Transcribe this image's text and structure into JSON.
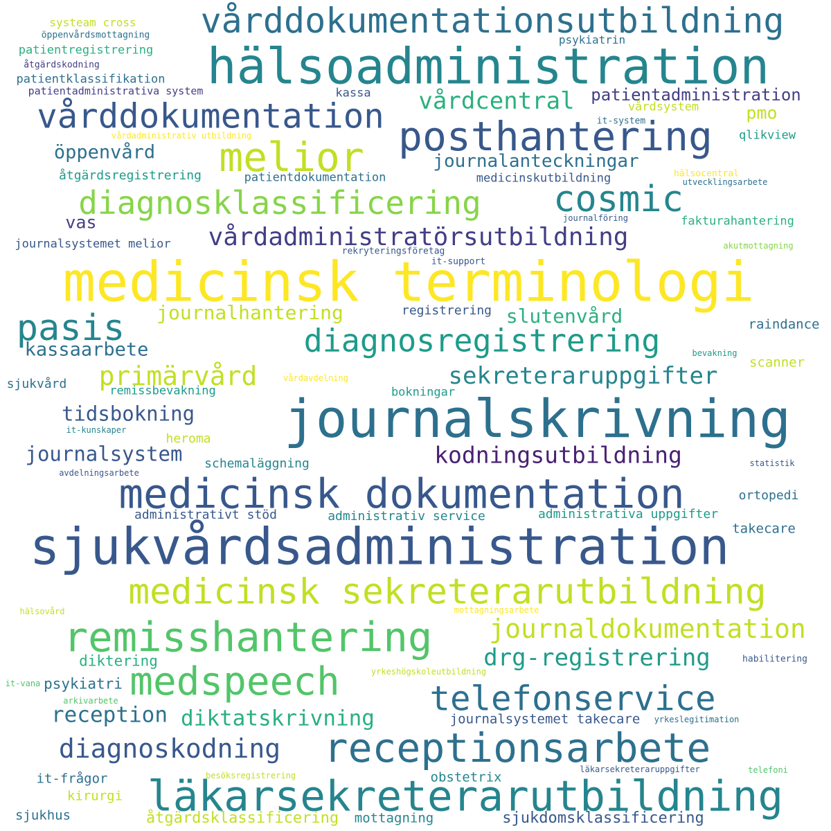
{
  "palette": {
    "c1": "#fde725",
    "c2": "#c2df23",
    "c3": "#86d549",
    "c4": "#52c569",
    "c5": "#2ab07f",
    "c6": "#1e9b8a",
    "c7": "#25858e",
    "c8": "#2d708e",
    "c9": "#38588c",
    "c10": "#433e85",
    "c11": "#482173"
  },
  "words": [
    {
      "text": "medicinsk terminologi",
      "weight": 1.0,
      "color": "c1"
    },
    {
      "text": "journalskrivning",
      "weight": 0.97,
      "color": "c8"
    },
    {
      "text": "sjukvårdsadministration",
      "weight": 0.93,
      "color": "c9"
    },
    {
      "text": "hälsoadministration",
      "weight": 0.9,
      "color": "c7"
    },
    {
      "text": "läkarsekreterarutbildning",
      "weight": 0.78,
      "color": "c7"
    },
    {
      "text": "medicinsk dokumentation",
      "weight": 0.76,
      "color": "c9"
    },
    {
      "text": "medicinsk sekreterarutbildning",
      "weight": 0.74,
      "color": "c2"
    },
    {
      "text": "remisshantering",
      "weight": 0.74,
      "color": "c4"
    },
    {
      "text": "receptionsarbete",
      "weight": 0.73,
      "color": "c8"
    },
    {
      "text": "vårddokumentationsutbildning",
      "weight": 0.72,
      "color": "c8"
    },
    {
      "text": "medspeech",
      "weight": 0.71,
      "color": "c4"
    },
    {
      "text": "melior",
      "weight": 0.7,
      "color": "c2"
    },
    {
      "text": "posthantering",
      "weight": 0.69,
      "color": "c9"
    },
    {
      "text": "pasis",
      "weight": 0.64,
      "color": "c7"
    },
    {
      "text": "vårddokumentation",
      "weight": 0.62,
      "color": "c9"
    },
    {
      "text": "telefonservice",
      "weight": 0.6,
      "color": "c8"
    },
    {
      "text": "cosmic",
      "weight": 0.6,
      "color": "c7"
    },
    {
      "text": "diagnosklassificering",
      "weight": 0.58,
      "color": "c3"
    },
    {
      "text": "diagnosregistrering",
      "weight": 0.56,
      "color": "c6"
    },
    {
      "text": "diagnoskodning",
      "weight": 0.48,
      "color": "c9"
    },
    {
      "text": "journaldokumentation",
      "weight": 0.47,
      "color": "c2"
    },
    {
      "text": "primärvård",
      "weight": 0.46,
      "color": "c2"
    },
    {
      "text": "vårdadministratörsutbildning",
      "weight": 0.43,
      "color": "c10"
    },
    {
      "text": "sekreteraruppgifter",
      "weight": 0.42,
      "color": "c7"
    },
    {
      "text": "drg-registrering",
      "weight": 0.41,
      "color": "c6"
    },
    {
      "text": "vårdcentral",
      "weight": 0.4,
      "color": "c5"
    },
    {
      "text": "kodningsutbildning",
      "weight": 0.4,
      "color": "c11"
    },
    {
      "text": "reception",
      "weight": 0.37,
      "color": "c8"
    },
    {
      "text": "diktatskrivning",
      "weight": 0.36,
      "color": "c5"
    },
    {
      "text": "journalsystem",
      "weight": 0.35,
      "color": "c9"
    },
    {
      "text": "tidsbokning",
      "weight": 0.34,
      "color": "c9"
    },
    {
      "text": "journalhantering",
      "weight": 0.33,
      "color": "c2"
    },
    {
      "text": "slutenvård",
      "weight": 0.32,
      "color": "c5"
    },
    {
      "text": "kassaarbete",
      "weight": 0.32,
      "color": "c8"
    },
    {
      "text": "öppenvård",
      "weight": 0.32,
      "color": "c8"
    },
    {
      "text": "journalanteckningar",
      "weight": 0.31,
      "color": "c8"
    },
    {
      "text": "patientadministration",
      "weight": 0.3,
      "color": "c10"
    },
    {
      "text": "pmo",
      "weight": 0.3,
      "color": "c2"
    },
    {
      "text": "vas",
      "weight": 0.29,
      "color": "c10"
    },
    {
      "text": "åtgärdsklassificering",
      "weight": 0.28,
      "color": "c2"
    },
    {
      "text": "sjukdomsklassificering",
      "weight": 0.28,
      "color": "c9"
    },
    {
      "text": "diktering",
      "weight": 0.27,
      "color": "c5"
    },
    {
      "text": "psykiatri",
      "weight": 0.26,
      "color": "c8"
    },
    {
      "text": "journalsystemet takecare",
      "weight": 0.26,
      "color": "c9"
    },
    {
      "text": "mottagning",
      "weight": 0.25,
      "color": "c7"
    },
    {
      "text": "obstetrix",
      "weight": 0.25,
      "color": "c7"
    },
    {
      "text": "it-frågor",
      "weight": 0.25,
      "color": "c8"
    },
    {
      "text": "kirurgi",
      "weight": 0.24,
      "color": "c2"
    },
    {
      "text": "sjukhus",
      "weight": 0.24,
      "color": "c8"
    },
    {
      "text": "takecare",
      "weight": 0.24,
      "color": "c8"
    },
    {
      "text": "administrativt stöd",
      "weight": 0.24,
      "color": "c9"
    },
    {
      "text": "administrativ service",
      "weight": 0.24,
      "color": "c7"
    },
    {
      "text": "administrativa uppgifter",
      "weight": 0.24,
      "color": "c6"
    },
    {
      "text": "schemaläggning",
      "weight": 0.23,
      "color": "c7"
    },
    {
      "text": "ortopedi",
      "weight": 0.23,
      "color": "c8"
    },
    {
      "text": "heroma",
      "weight": 0.23,
      "color": "c2"
    },
    {
      "text": "scanner",
      "weight": 0.24,
      "color": "c2"
    },
    {
      "text": "raindance",
      "weight": 0.24,
      "color": "c8"
    },
    {
      "text": "registrering",
      "weight": 0.23,
      "color": "c9"
    },
    {
      "text": "sjukvård",
      "weight": 0.23,
      "color": "c8"
    },
    {
      "text": "bokningar",
      "weight": 0.22,
      "color": "c6"
    },
    {
      "text": "remissbevakning",
      "weight": 0.22,
      "color": "c6"
    },
    {
      "text": "åtgärdsregistrering",
      "weight": 0.23,
      "color": "c6"
    },
    {
      "text": "patientdokumentation",
      "weight": 0.22,
      "color": "c8"
    },
    {
      "text": "medicinskutbildning",
      "weight": 0.22,
      "color": "c9"
    },
    {
      "text": "fakturahantering",
      "weight": 0.22,
      "color": "c5"
    },
    {
      "text": "journalsystemet melior",
      "weight": 0.22,
      "color": "c9"
    },
    {
      "text": "qlikview",
      "weight": 0.22,
      "color": "c6"
    },
    {
      "text": "vårdsystem",
      "weight": 0.22,
      "color": "c2"
    },
    {
      "text": "kassa",
      "weight": 0.22,
      "color": "c9"
    },
    {
      "text": "patientregistrering",
      "weight": 0.22,
      "color": "c5"
    },
    {
      "text": "patientklassifikation",
      "weight": 0.22,
      "color": "c8"
    },
    {
      "text": "patientadministrativa system",
      "weight": 0.2,
      "color": "c10"
    },
    {
      "text": "systeam cross",
      "weight": 0.21,
      "color": "c2"
    },
    {
      "text": "psykiatrin",
      "weight": 0.2,
      "color": "c8"
    },
    {
      "text": "öppenvårdsmottagning",
      "weight": 0.18,
      "color": "c8"
    },
    {
      "text": "åtgärdskodning",
      "weight": 0.17,
      "color": "c10"
    },
    {
      "text": "vårdadministrativ utbildning",
      "weight": 0.16,
      "color": "c1"
    },
    {
      "text": "it-system",
      "weight": 0.17,
      "color": "c8"
    },
    {
      "text": "hälsocentral",
      "weight": 0.17,
      "color": "c1"
    },
    {
      "text": "utvecklingsarbete",
      "weight": 0.17,
      "color": "c8"
    },
    {
      "text": "journalföring",
      "weight": 0.16,
      "color": "c9"
    },
    {
      "text": "rekryteringsföretag",
      "weight": 0.17,
      "color": "c9"
    },
    {
      "text": "it-support",
      "weight": 0.17,
      "color": "c9"
    },
    {
      "text": "akutmottagning",
      "weight": 0.16,
      "color": "c3"
    },
    {
      "text": "bevakning",
      "weight": 0.16,
      "color": "c6"
    },
    {
      "text": "vårdavdelning",
      "weight": 0.16,
      "color": "c1"
    },
    {
      "text": "it-kunskaper",
      "weight": 0.16,
      "color": "c7"
    },
    {
      "text": "avdelningsarbete",
      "weight": 0.16,
      "color": "c9"
    },
    {
      "text": "statistik",
      "weight": 0.16,
      "color": "c9"
    },
    {
      "text": "hälsovård",
      "weight": 0.16,
      "color": "c2"
    },
    {
      "text": "mottagningsarbete",
      "weight": 0.16,
      "color": "c1"
    },
    {
      "text": "habilitering",
      "weight": 0.17,
      "color": "c9"
    },
    {
      "text": "it-vana",
      "weight": 0.16,
      "color": "c4"
    },
    {
      "text": "yrkeshögskoleutbildning",
      "weight": 0.16,
      "color": "c2"
    },
    {
      "text": "arkivarbete",
      "weight": 0.16,
      "color": "c4"
    },
    {
      "text": "yrkeslegitimation",
      "weight": 0.16,
      "color": "c8"
    },
    {
      "text": "besöksregistrering",
      "weight": 0.16,
      "color": "c2"
    },
    {
      "text": "läkarsekreteraruppgifter",
      "weight": 0.16,
      "color": "c9"
    },
    {
      "text": "telefoni",
      "weight": 0.16,
      "color": "c4"
    }
  ]
}
